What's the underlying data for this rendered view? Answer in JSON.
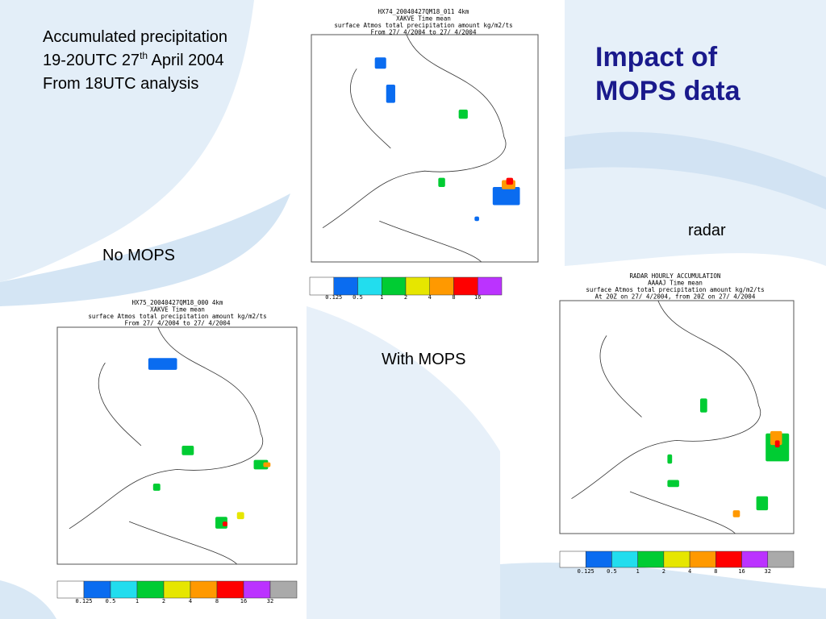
{
  "title": "Impact of MOPS data",
  "description": {
    "line1": "Accumulated precipitation",
    "line2_pre": "19-20UTC 27",
    "line2_sup": "th",
    "line2_post": " April 2004",
    "line3": "From 18UTC analysis"
  },
  "labels": {
    "no_mops": "No MOPS",
    "with_mops": "With MOPS",
    "radar": "radar"
  },
  "maps": [
    {
      "header": [
        "HX74_20040427QM18_011 4km",
        "XAKVE Time mean",
        "surface Atmos total precipitation amount kg/m2/ts",
        "From 27/ 4/2004 to 27/ 4/2004"
      ],
      "legend_colors": [
        "#ffffff",
        "#0a6cf0",
        "#22ddee",
        "#00cc33",
        "#e6e600",
        "#ff9900",
        "#ff0000",
        "#bb33ff"
      ],
      "legend_labels": [
        0.125,
        0.5,
        1,
        2,
        4,
        8,
        16
      ]
    },
    {
      "header": [
        "HX75_20040427QM18_000 4km",
        "XAKVE Time mean",
        "surface Atmos total precipitation amount kg/m2/ts",
        "From 27/ 4/2004 to 27/ 4/2004"
      ],
      "legend_colors": [
        "#ffffff",
        "#0a6cf0",
        "#22ddee",
        "#00cc33",
        "#e6e600",
        "#ff9900",
        "#ff0000",
        "#bb33ff",
        "#aaaaaa"
      ],
      "legend_labels": [
        0.125,
        0.5,
        1,
        2,
        4,
        8,
        16,
        32
      ]
    },
    {
      "header": [
        "RADAR HOURLY ACCUMULATION",
        "AAAAJ Time mean",
        "surface Atmos total precipitation amount kg/m2/ts",
        "At 20Z on 27/ 4/2004, from 20Z on 27/ 4/2004"
      ],
      "legend_colors": [
        "#ffffff",
        "#0a6cf0",
        "#22ddee",
        "#00cc33",
        "#e6e600",
        "#ff9900",
        "#ff0000",
        "#bb33ff",
        "#aaaaaa"
      ],
      "legend_labels": [
        0.125,
        0.5,
        1,
        2,
        4,
        8,
        16,
        32
      ]
    }
  ]
}
